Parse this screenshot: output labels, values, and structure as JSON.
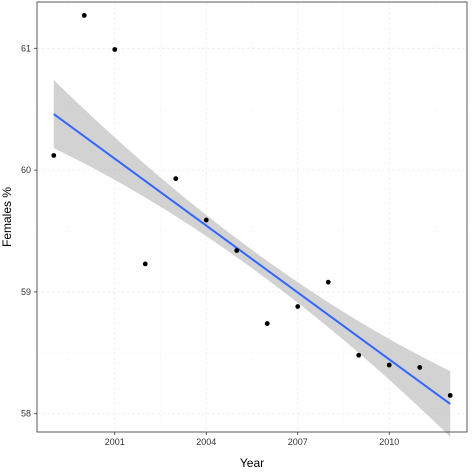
{
  "chart_data": {
    "type": "scatter",
    "title": "",
    "xlabel": "Year",
    "ylabel": "Females %",
    "xlim": [
      1998.45,
      2012.55
    ],
    "ylim": [
      57.85,
      61.38
    ],
    "x_ticks": [
      2001,
      2004,
      2007,
      2010
    ],
    "x_tick_labels": [
      "2001",
      "2004",
      "2007",
      "2010"
    ],
    "y_ticks": [
      58,
      59,
      60,
      61
    ],
    "y_tick_labels": [
      "58",
      "59",
      "60",
      "61"
    ],
    "grid": true,
    "points": {
      "x": [
        1999,
        2000,
        2001,
        2002,
        2003,
        2004,
        2005,
        2006,
        2007,
        2008,
        2009,
        2010,
        2011,
        2012
      ],
      "y": [
        60.12,
        61.27,
        60.99,
        59.23,
        59.93,
        59.59,
        59.34,
        58.74,
        58.88,
        59.08,
        58.48,
        58.4,
        58.38,
        58.15
      ]
    },
    "trend": {
      "method": "linear fit",
      "x": [
        1999,
        2012
      ],
      "y": [
        60.46,
        58.08
      ],
      "ci_upper": [
        60.74,
        58.35
      ],
      "ci_mid_x": 2005.5,
      "ci_mid_half_width": 0.075
    },
    "colors": {
      "points": "#000000",
      "line": "#3366ff",
      "ribbon": "#bfbfbf",
      "grid_major": "#ebebeb",
      "grid_minor": "#f5f5f5",
      "panel_border": "#333333"
    }
  }
}
